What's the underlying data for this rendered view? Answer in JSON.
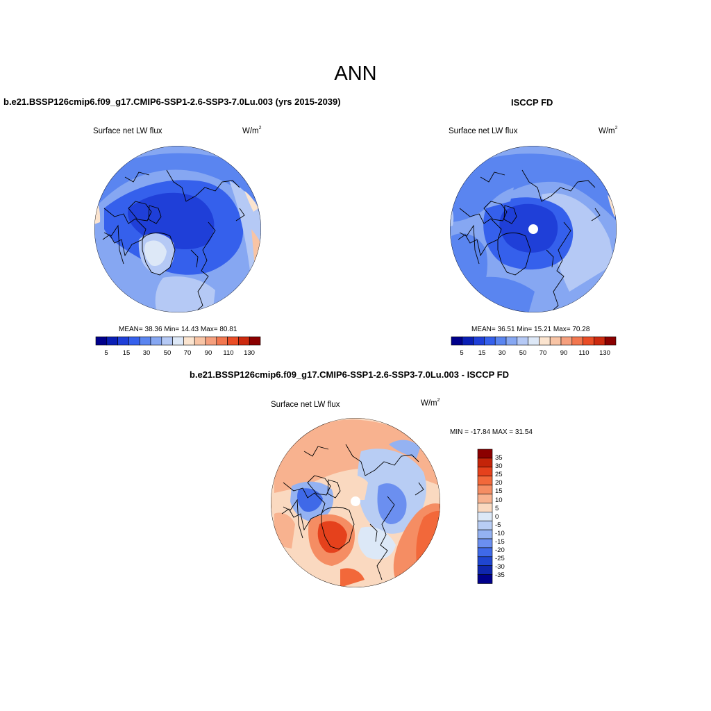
{
  "title": "ANN",
  "panels": [
    {
      "title": "b.e21.BSSP126cmip6.f09_g17.CMIP6-SSP1-2.6-SSP3-7.0Lu.003 (yrs 2015-2039)",
      "variable": "Surface net LW flux",
      "units_base": "W/m",
      "units_exp": "2",
      "stats": "MEAN=  38.36  Min=  14.43  Max=  80.81",
      "colorbar_labels": [
        "5",
        "15",
        "30",
        "50",
        "70",
        "90",
        "110",
        "130"
      ]
    },
    {
      "title": "ISCCP FD",
      "variable": "Surface net LW flux",
      "units_base": "W/m",
      "units_exp": "2",
      "stats": "MEAN=  36.51  Min=  15.21  Max=  70.28",
      "colorbar_labels": [
        "5",
        "15",
        "30",
        "50",
        "70",
        "90",
        "110",
        "130"
      ]
    },
    {
      "title": "b.e21.BSSP126cmip6.f09_g17.CMIP6-SSP1-2.6-SSP3-7.0Lu.003 - ISCCP FD",
      "variable": "Surface net LW flux",
      "units_base": "W/m",
      "units_exp": "2",
      "stats": "MIN = -17.84 MAX =  31.54",
      "colorbar_labels": [
        "35",
        "30",
        "25",
        "20",
        "15",
        "10",
        "5",
        "0",
        "-5",
        "-10",
        "-15",
        "-20",
        "-25",
        "-30",
        "-35"
      ]
    }
  ],
  "colors": {
    "abs_scale": [
      "#00008b",
      "#0a1fb5",
      "#1f3fd8",
      "#3560ec",
      "#5a85f0",
      "#86a7f2",
      "#b5c9f5",
      "#dde8f7",
      "#fbe4cf",
      "#f8c4a5",
      "#f59f7d",
      "#f2774f",
      "#ea4d26",
      "#cc2a0f",
      "#8b0000"
    ],
    "diff_scale": [
      "#8b0000",
      "#c42409",
      "#e5411c",
      "#f2683a",
      "#f58d63",
      "#f8b28f",
      "#fad9c0",
      "#dce8f7",
      "#b8cdf4",
      "#94b2f2",
      "#6b8ff0",
      "#3f69e8",
      "#1f45d0",
      "#0f26ad",
      "#00008b"
    ]
  }
}
